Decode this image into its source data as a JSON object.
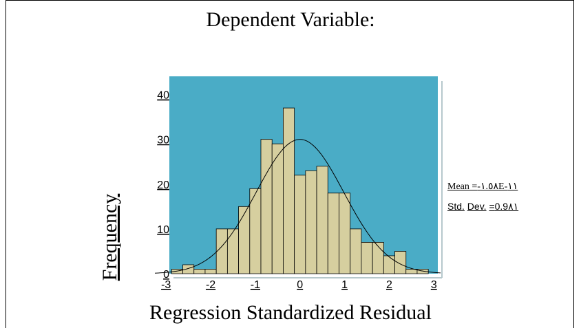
{
  "chart_data": {
    "type": "bar",
    "title": "Dependent Variable:",
    "xlabel": "Regression Standardized Residual",
    "ylabel": "Frequency",
    "xlim": [
      -3.25,
      3.15
    ],
    "ylim": [
      0,
      43
    ],
    "xticks": [
      "-3",
      "-2",
      "-1",
      "0",
      "1",
      "2",
      "3"
    ],
    "yticks": [
      "0",
      "10",
      "20",
      "30",
      "40"
    ],
    "bin_width": 0.25,
    "bins_start": [
      -2.875,
      -2.625,
      -2.375,
      -2.125,
      -1.875,
      -1.625,
      -1.375,
      -1.125,
      -0.875,
      -0.625,
      -0.375,
      -0.125,
      0.125,
      0.375,
      0.625,
      0.875,
      1.125,
      1.375,
      1.625,
      1.875,
      2.125,
      2.375,
      2.625
    ],
    "values": [
      1,
      2,
      1,
      1,
      10,
      10,
      15,
      19,
      30,
      29,
      37,
      22,
      23,
      24,
      18,
      18,
      10,
      7,
      7,
      4,
      5,
      1,
      1
    ],
    "normal_curve": {
      "mean": 0,
      "sd": 0.981,
      "n": 295
    },
    "stats": {
      "mean_label": "Mean =",
      "mean_value": "-١.٥٨E-١١",
      "std_label_1": "Std.",
      "std_label_2": "Dev.",
      "std_eq": "=",
      "std_value": "0.9٨١"
    },
    "colors": {
      "plot_bg": "#4aacc6",
      "bar_fill": "#d6cf9f",
      "bar_stroke": "#000000",
      "curve": "#000000"
    },
    "grid": false
  }
}
